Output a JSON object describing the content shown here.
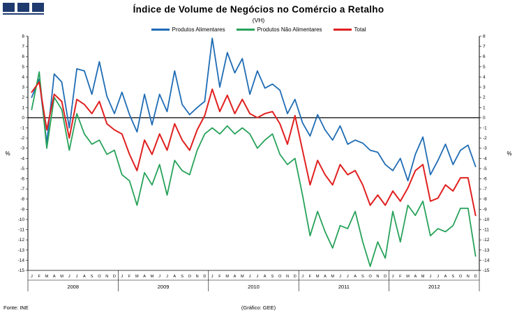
{
  "footer": {
    "source": "Fonte:  INE",
    "credit": "(Gráfico:  GEE)"
  },
  "chart_data": {
    "type": "line",
    "title": "Índice de Volume de Negócios no Comércio a Retalho",
    "subtitle": "(VH)",
    "ylabel_left": "%",
    "ylabel_right": "%",
    "ylim": [
      -15,
      8
    ],
    "ytick_step": 1,
    "grid": false,
    "legend_position": "top",
    "years": [
      "2008",
      "2009",
      "2010",
      "2011",
      "2012"
    ],
    "month_letters": [
      "J",
      "F",
      "M",
      "A",
      "M",
      "J",
      "J",
      "A",
      "S",
      "O",
      "N",
      "D"
    ],
    "series": [
      {
        "name": "Produtos Alimentares",
        "color": "#1f6cb4",
        "values": [
          2.0,
          3.8,
          -2.5,
          4.3,
          3.5,
          -1.0,
          4.8,
          4.6,
          2.3,
          5.5,
          2.1,
          0.4,
          2.5,
          0.3,
          -1.4,
          2.3,
          -0.7,
          2.3,
          0.6,
          4.6,
          1.3,
          0.3,
          1.0,
          1.6,
          7.8,
          3.0,
          6.4,
          4.4,
          5.8,
          2.3,
          4.6,
          2.9,
          3.3,
          2.7,
          0.4,
          1.8,
          -0.5,
          -1.8,
          0.3,
          -1.2,
          -2.2,
          -0.8,
          -2.6,
          -2.2,
          -2.5,
          -3.2,
          -3.4,
          -4.6,
          -5.2,
          -4.0,
          -6.2,
          -3.6,
          -1.9,
          -5.6,
          -4.2,
          -2.6,
          -4.6,
          -3.2,
          -2.7,
          -4.8
        ]
      },
      {
        "name": "Produtos Não Alimentares",
        "color": "#27a25a",
        "values": [
          0.8,
          4.5,
          -3.0,
          2.0,
          0.8,
          -3.2,
          0.4,
          -1.6,
          -2.6,
          -2.2,
          -3.6,
          -3.2,
          -5.6,
          -6.2,
          -8.6,
          -5.4,
          -6.6,
          -4.6,
          -7.6,
          -4.2,
          -5.2,
          -5.6,
          -3.2,
          -1.6,
          -1.0,
          -1.6,
          -0.8,
          -1.6,
          -1.0,
          -1.6,
          -3.0,
          -2.2,
          -1.6,
          -3.6,
          -4.6,
          -4.0,
          -7.6,
          -11.6,
          -9.2,
          -11.2,
          -12.8,
          -10.6,
          -10.9,
          -9.2,
          -12.2,
          -14.6,
          -12.2,
          -13.8,
          -9.2,
          -12.2,
          -8.6,
          -9.6,
          -8.2,
          -11.6,
          -10.9,
          -11.2,
          -10.6,
          -8.9,
          -8.9,
          -13.6
        ]
      },
      {
        "name": "Total",
        "color": "#e02020",
        "values": [
          2.5,
          3.5,
          -1.2,
          2.3,
          1.6,
          -2.0,
          1.8,
          1.3,
          0.4,
          1.6,
          -0.6,
          -1.2,
          -1.6,
          -3.6,
          -5.2,
          -2.2,
          -3.6,
          -1.6,
          -3.2,
          -0.6,
          -2.2,
          -3.2,
          -1.2,
          0.2,
          2.8,
          0.6,
          2.2,
          0.4,
          1.8,
          0.4,
          0.0,
          0.4,
          0.6,
          -0.6,
          -2.6,
          0.2,
          -3.2,
          -6.6,
          -4.2,
          -5.6,
          -6.6,
          -4.6,
          -5.6,
          -5.2,
          -6.6,
          -8.6,
          -7.6,
          -8.6,
          -7.2,
          -8.2,
          -6.9,
          -5.2,
          -4.6,
          -8.2,
          -7.9,
          -6.6,
          -7.2,
          -5.9,
          -5.9,
          -9.6
        ]
      }
    ]
  }
}
